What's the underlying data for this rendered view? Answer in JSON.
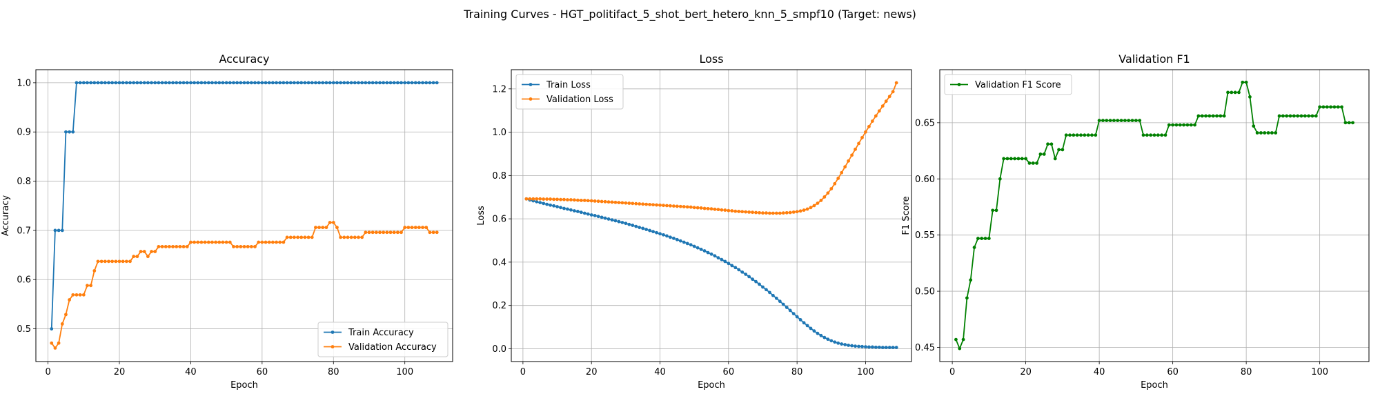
{
  "figure": {
    "suptitle": "Training Curves - HGT_politifact_5_shot_bert_hetero_knn_5_smpf10 (Target: news)"
  },
  "colors": {
    "blue": "#1f77b4",
    "orange": "#ff7f0e",
    "green": "#008000",
    "grid": "#b0b0b0"
  },
  "chart_data": [
    {
      "type": "line",
      "title": "Accuracy",
      "xlabel": "Epoch",
      "ylabel": "Accuracy",
      "xlim": [
        -3.4,
        113.4
      ],
      "ylim": [
        0.4335,
        1.0265
      ],
      "xticks": [
        0,
        20,
        40,
        60,
        80,
        100
      ],
      "yticks": [
        0.5,
        0.6,
        0.7,
        0.8,
        0.9,
        1.0
      ],
      "ytick_labels": [
        "0.5",
        "0.6",
        "0.7",
        "0.8",
        "0.9",
        "1.0"
      ],
      "grid": true,
      "legend_position": "lower-right",
      "x": [
        1,
        2,
        3,
        4,
        5,
        6,
        7,
        8,
        9,
        10,
        11,
        12,
        13,
        14,
        15,
        16,
        17,
        18,
        19,
        20,
        21,
        22,
        23,
        24,
        25,
        26,
        27,
        28,
        29,
        30,
        31,
        32,
        33,
        34,
        35,
        36,
        37,
        38,
        39,
        40,
        41,
        42,
        43,
        44,
        45,
        46,
        47,
        48,
        49,
        50,
        51,
        52,
        53,
        54,
        55,
        56,
        57,
        58,
        59,
        60,
        61,
        62,
        63,
        64,
        65,
        66,
        67,
        68,
        69,
        70,
        71,
        72,
        73,
        74,
        75,
        76,
        77,
        78,
        79,
        80,
        81,
        82,
        83,
        84,
        85,
        86,
        87,
        88,
        89,
        90,
        91,
        92,
        93,
        94,
        95,
        96,
        97,
        98,
        99,
        100,
        101,
        102,
        103,
        104,
        105,
        106,
        107,
        108,
        109
      ],
      "series": [
        {
          "name": "Train Accuracy",
          "color": "#1f77b4",
          "values": [
            0.5,
            0.7,
            0.7,
            0.7,
            0.9,
            0.9,
            0.9,
            1.0,
            1.0,
            1.0,
            1.0,
            1.0,
            1.0,
            1.0,
            1.0,
            1.0,
            1.0,
            1.0,
            1.0,
            1.0,
            1.0,
            1.0,
            1.0,
            1.0,
            1.0,
            1.0,
            1.0,
            1.0,
            1.0,
            1.0,
            1.0,
            1.0,
            1.0,
            1.0,
            1.0,
            1.0,
            1.0,
            1.0,
            1.0,
            1.0,
            1.0,
            1.0,
            1.0,
            1.0,
            1.0,
            1.0,
            1.0,
            1.0,
            1.0,
            1.0,
            1.0,
            1.0,
            1.0,
            1.0,
            1.0,
            1.0,
            1.0,
            1.0,
            1.0,
            1.0,
            1.0,
            1.0,
            1.0,
            1.0,
            1.0,
            1.0,
            1.0,
            1.0,
            1.0,
            1.0,
            1.0,
            1.0,
            1.0,
            1.0,
            1.0,
            1.0,
            1.0,
            1.0,
            1.0,
            1.0,
            1.0,
            1.0,
            1.0,
            1.0,
            1.0,
            1.0,
            1.0,
            1.0,
            1.0,
            1.0,
            1.0,
            1.0,
            1.0,
            1.0,
            1.0,
            1.0,
            1.0,
            1.0,
            1.0,
            1.0,
            1.0,
            1.0,
            1.0,
            1.0,
            1.0,
            1.0,
            1.0,
            1.0,
            1.0
          ]
        },
        {
          "name": "Validation Accuracy",
          "color": "#ff7f0e",
          "values": [
            0.471,
            0.461,
            0.471,
            0.51,
            0.529,
            0.559,
            0.569,
            0.569,
            0.569,
            0.569,
            0.588,
            0.588,
            0.618,
            0.637,
            0.637,
            0.637,
            0.637,
            0.637,
            0.637,
            0.637,
            0.637,
            0.637,
            0.637,
            0.647,
            0.647,
            0.657,
            0.657,
            0.647,
            0.657,
            0.657,
            0.667,
            0.667,
            0.667,
            0.667,
            0.667,
            0.667,
            0.667,
            0.667,
            0.667,
            0.676,
            0.676,
            0.676,
            0.676,
            0.676,
            0.676,
            0.676,
            0.676,
            0.676,
            0.676,
            0.676,
            0.676,
            0.667,
            0.667,
            0.667,
            0.667,
            0.667,
            0.667,
            0.667,
            0.676,
            0.676,
            0.676,
            0.676,
            0.676,
            0.676,
            0.676,
            0.676,
            0.686,
            0.686,
            0.686,
            0.686,
            0.686,
            0.686,
            0.686,
            0.686,
            0.706,
            0.706,
            0.706,
            0.706,
            0.716,
            0.716,
            0.706,
            0.686,
            0.686,
            0.686,
            0.686,
            0.686,
            0.686,
            0.686,
            0.696,
            0.696,
            0.696,
            0.696,
            0.696,
            0.696,
            0.696,
            0.696,
            0.696,
            0.696,
            0.696,
            0.706,
            0.706,
            0.706,
            0.706,
            0.706,
            0.706,
            0.706,
            0.696,
            0.696,
            0.696
          ]
        }
      ]
    },
    {
      "type": "line",
      "title": "Loss",
      "xlabel": "Epoch",
      "ylabel": "Loss",
      "xlim": [
        -3.4,
        113.4
      ],
      "ylim": [
        -0.0591,
        1.2886
      ],
      "xticks": [
        0,
        20,
        40,
        60,
        80,
        100
      ],
      "yticks": [
        0.0,
        0.2,
        0.4,
        0.6,
        0.8,
        1.0,
        1.2
      ],
      "ytick_labels": [
        "0.0",
        "0.2",
        "0.4",
        "0.6",
        "0.8",
        "1.0",
        "1.2"
      ],
      "grid": true,
      "legend_position": "upper-left",
      "x": [
        1,
        2,
        3,
        4,
        5,
        6,
        7,
        8,
        9,
        10,
        11,
        12,
        13,
        14,
        15,
        16,
        17,
        18,
        19,
        20,
        21,
        22,
        23,
        24,
        25,
        26,
        27,
        28,
        29,
        30,
        31,
        32,
        33,
        34,
        35,
        36,
        37,
        38,
        39,
        40,
        41,
        42,
        43,
        44,
        45,
        46,
        47,
        48,
        49,
        50,
        51,
        52,
        53,
        54,
        55,
        56,
        57,
        58,
        59,
        60,
        61,
        62,
        63,
        64,
        65,
        66,
        67,
        68,
        69,
        70,
        71,
        72,
        73,
        74,
        75,
        76,
        77,
        78,
        79,
        80,
        81,
        82,
        83,
        84,
        85,
        86,
        87,
        88,
        89,
        90,
        91,
        92,
        93,
        94,
        95,
        96,
        97,
        98,
        99,
        100,
        101,
        102,
        103,
        104,
        105,
        106,
        107,
        108,
        109
      ],
      "series": [
        {
          "name": "Train Loss",
          "color": "#1f77b4",
          "values": [
            0.692,
            0.687,
            0.683,
            0.679,
            0.675,
            0.671,
            0.667,
            0.663,
            0.66,
            0.656,
            0.652,
            0.648,
            0.645,
            0.641,
            0.637,
            0.634,
            0.63,
            0.626,
            0.622,
            0.618,
            0.615,
            0.611,
            0.607,
            0.603,
            0.599,
            0.595,
            0.591,
            0.587,
            0.583,
            0.579,
            0.574,
            0.57,
            0.565,
            0.56,
            0.556,
            0.551,
            0.546,
            0.541,
            0.536,
            0.531,
            0.526,
            0.521,
            0.515,
            0.51,
            0.504,
            0.498,
            0.492,
            0.486,
            0.48,
            0.473,
            0.466,
            0.459,
            0.452,
            0.444,
            0.437,
            0.429,
            0.42,
            0.412,
            0.403,
            0.394,
            0.384,
            0.375,
            0.365,
            0.354,
            0.344,
            0.333,
            0.321,
            0.31,
            0.298,
            0.285,
            0.273,
            0.26,
            0.246,
            0.233,
            0.219,
            0.205,
            0.191,
            0.177,
            0.162,
            0.148,
            0.134,
            0.12,
            0.107,
            0.094,
            0.082,
            0.071,
            0.061,
            0.052,
            0.044,
            0.037,
            0.031,
            0.026,
            0.022,
            0.019,
            0.016,
            0.014,
            0.012,
            0.011,
            0.01,
            0.009,
            0.008,
            0.008,
            0.007,
            0.007,
            0.006,
            0.006,
            0.006,
            0.006,
            0.006
          ]
        },
        {
          "name": "Validation Loss",
          "color": "#ff7f0e",
          "values": [
            0.692,
            0.692,
            0.692,
            0.692,
            0.692,
            0.691,
            0.691,
            0.691,
            0.69,
            0.69,
            0.689,
            0.689,
            0.688,
            0.688,
            0.687,
            0.686,
            0.685,
            0.685,
            0.684,
            0.683,
            0.682,
            0.681,
            0.68,
            0.679,
            0.678,
            0.677,
            0.676,
            0.675,
            0.674,
            0.673,
            0.672,
            0.671,
            0.67,
            0.669,
            0.668,
            0.667,
            0.666,
            0.665,
            0.664,
            0.663,
            0.662,
            0.661,
            0.66,
            0.659,
            0.658,
            0.657,
            0.656,
            0.655,
            0.654,
            0.652,
            0.651,
            0.65,
            0.648,
            0.647,
            0.646,
            0.644,
            0.643,
            0.641,
            0.64,
            0.638,
            0.637,
            0.635,
            0.634,
            0.633,
            0.632,
            0.631,
            0.63,
            0.629,
            0.628,
            0.627,
            0.627,
            0.626,
            0.626,
            0.626,
            0.626,
            0.627,
            0.628,
            0.629,
            0.631,
            0.633,
            0.636,
            0.64,
            0.645,
            0.652,
            0.661,
            0.672,
            0.685,
            0.701,
            0.719,
            0.739,
            0.762,
            0.787,
            0.813,
            0.84,
            0.867,
            0.894,
            0.921,
            0.948,
            0.975,
            1.001,
            1.026,
            1.051,
            1.075,
            1.098,
            1.121,
            1.143,
            1.165,
            1.187,
            1.228
          ]
        }
      ]
    },
    {
      "type": "line",
      "title": "Validation F1",
      "xlabel": "Epoch",
      "ylabel": "F1 Score",
      "xlim": [
        -3.4,
        113.4
      ],
      "ylim": [
        0.4374,
        0.6972
      ],
      "xticks": [
        0,
        20,
        40,
        60,
        80,
        100
      ],
      "yticks": [
        0.45,
        0.5,
        0.55,
        0.6,
        0.65
      ],
      "ytick_labels": [
        "0.45",
        "0.50",
        "0.55",
        "0.60",
        "0.65"
      ],
      "grid": true,
      "legend_position": "upper-left",
      "x": [
        1,
        2,
        3,
        4,
        5,
        6,
        7,
        8,
        9,
        10,
        11,
        12,
        13,
        14,
        15,
        16,
        17,
        18,
        19,
        20,
        21,
        22,
        23,
        24,
        25,
        26,
        27,
        28,
        29,
        30,
        31,
        32,
        33,
        34,
        35,
        36,
        37,
        38,
        39,
        40,
        41,
        42,
        43,
        44,
        45,
        46,
        47,
        48,
        49,
        50,
        51,
        52,
        53,
        54,
        55,
        56,
        57,
        58,
        59,
        60,
        61,
        62,
        63,
        64,
        65,
        66,
        67,
        68,
        69,
        70,
        71,
        72,
        73,
        74,
        75,
        76,
        77,
        78,
        79,
        80,
        81,
        82,
        83,
        84,
        85,
        86,
        87,
        88,
        89,
        90,
        91,
        92,
        93,
        94,
        95,
        96,
        97,
        98,
        99,
        100,
        101,
        102,
        103,
        104,
        105,
        106,
        107,
        108,
        109
      ],
      "series": [
        {
          "name": "Validation F1 Score",
          "color": "#008000",
          "values": [
            0.457,
            0.449,
            0.457,
            0.494,
            0.51,
            0.539,
            0.547,
            0.547,
            0.547,
            0.547,
            0.572,
            0.572,
            0.6,
            0.618,
            0.618,
            0.618,
            0.618,
            0.618,
            0.618,
            0.618,
            0.614,
            0.614,
            0.614,
            0.622,
            0.622,
            0.631,
            0.631,
            0.618,
            0.626,
            0.626,
            0.639,
            0.639,
            0.639,
            0.639,
            0.639,
            0.639,
            0.639,
            0.639,
            0.639,
            0.652,
            0.652,
            0.652,
            0.652,
            0.652,
            0.652,
            0.652,
            0.652,
            0.652,
            0.652,
            0.652,
            0.652,
            0.639,
            0.639,
            0.639,
            0.639,
            0.639,
            0.639,
            0.639,
            0.648,
            0.648,
            0.648,
            0.648,
            0.648,
            0.648,
            0.648,
            0.648,
            0.656,
            0.656,
            0.656,
            0.656,
            0.656,
            0.656,
            0.656,
            0.656,
            0.677,
            0.677,
            0.677,
            0.677,
            0.686,
            0.686,
            0.673,
            0.647,
            0.641,
            0.641,
            0.641,
            0.641,
            0.641,
            0.641,
            0.656,
            0.656,
            0.656,
            0.656,
            0.656,
            0.656,
            0.656,
            0.656,
            0.656,
            0.656,
            0.656,
            0.664,
            0.664,
            0.664,
            0.664,
            0.664,
            0.664,
            0.664,
            0.65,
            0.65,
            0.65
          ]
        }
      ]
    }
  ]
}
